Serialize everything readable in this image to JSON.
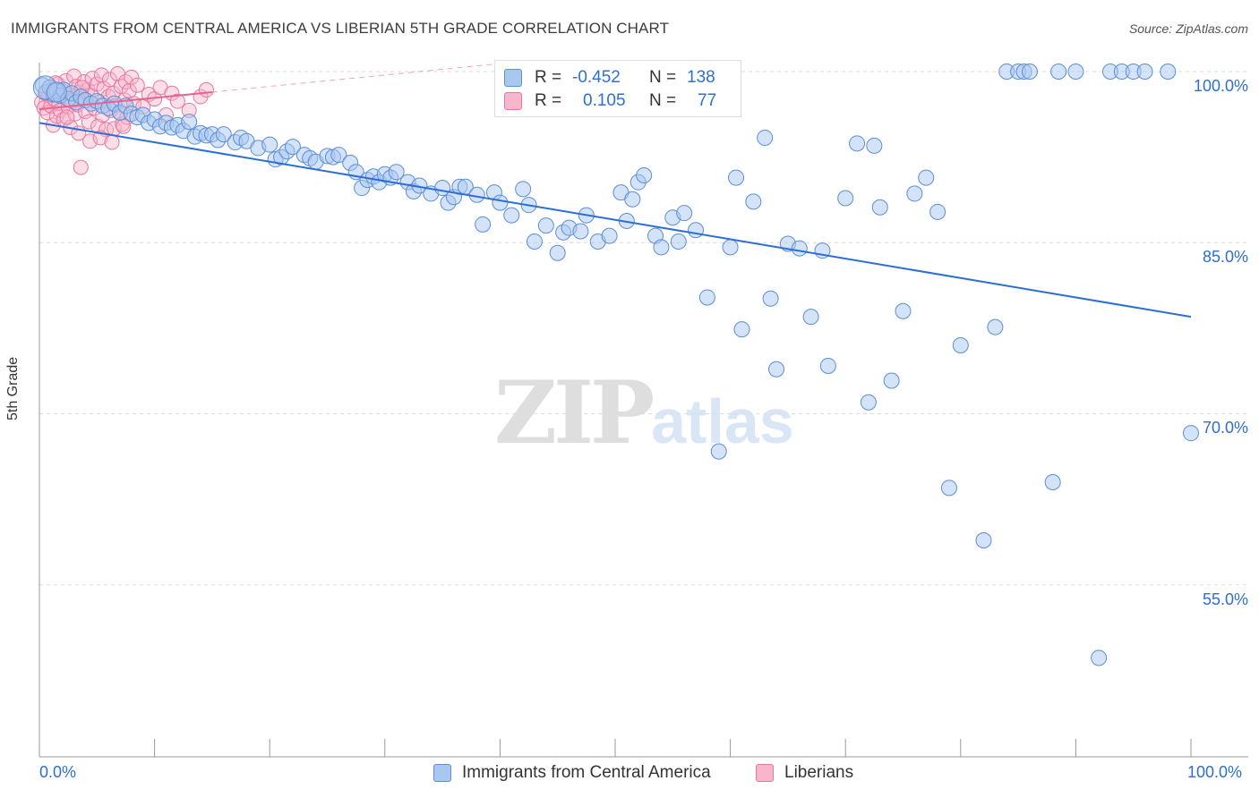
{
  "header": {
    "title": "IMMIGRANTS FROM CENTRAL AMERICA VS LIBERIAN 5TH GRADE CORRELATION CHART",
    "source": "Source: ZipAtlas.com"
  },
  "stats": {
    "row1": {
      "r_label": "R =",
      "r_value": "-0.452",
      "n_label": "N =",
      "n_value": "138"
    },
    "row2": {
      "r_label": "R =",
      "r_value": "0.105",
      "n_label": "N =",
      "n_value": "77"
    }
  },
  "watermark": {
    "zip": "ZIP",
    "atlas": "atlas"
  },
  "legend": {
    "series1": "Immigrants from Central America",
    "series2": "Liberians"
  },
  "axes": {
    "x_left": "0.0%",
    "x_right": "100.0%",
    "y_ticks": [
      "100.0%",
      "85.0%",
      "70.0%",
      "55.0%"
    ]
  },
  "colors": {
    "blue_fill": "#a9c8ef",
    "blue_stroke": "#5b8fd6",
    "blue_line": "#2b6fd4",
    "pink_fill": "#f7b6cb",
    "pink_stroke": "#e8769c",
    "pink_line": "#e8638f",
    "tick_text": "#2e6fd1"
  },
  "chart_data": {
    "type": "scatter",
    "title": "IMMIGRANTS FROM CENTRAL AMERICA VS LIBERIAN 5TH GRADE CORRELATION CHART",
    "xlabel": "",
    "ylabel": "5th Grade",
    "xlim": [
      0,
      100
    ],
    "ylim": [
      40,
      102.5
    ],
    "grid": true,
    "legend_position": "bottom-center",
    "series": [
      {
        "name": "Immigrants from Central America",
        "color": "#a9c8ef",
        "trend": {
          "x": [
            0,
            100
          ],
          "y": [
            95.5,
            78.5
          ]
        },
        "points": [
          [
            0.3,
            98.8
          ],
          [
            0.6,
            98.2
          ],
          [
            0.9,
            98.6
          ],
          [
            1.2,
            98.0
          ],
          [
            1.5,
            98.3
          ],
          [
            1.8,
            97.9
          ],
          [
            2.1,
            98.4
          ],
          [
            2.5,
            97.6
          ],
          [
            2.8,
            98.1
          ],
          [
            3.2,
            97.3
          ],
          [
            3.6,
            97.8
          ],
          [
            4.0,
            97.5
          ],
          [
            4.5,
            97.2
          ],
          [
            5.0,
            97.4
          ],
          [
            5.5,
            97.0
          ],
          [
            6.0,
            96.8
          ],
          [
            6.5,
            97.2
          ],
          [
            7.0,
            96.4
          ],
          [
            7.5,
            97.0
          ],
          [
            8.0,
            96.3
          ],
          [
            8.5,
            96.0
          ],
          [
            9.0,
            96.2
          ],
          [
            9.5,
            95.5
          ],
          [
            10.0,
            95.8
          ],
          [
            10.5,
            95.2
          ],
          [
            11.0,
            95.5
          ],
          [
            11.5,
            95.1
          ],
          [
            12.0,
            95.3
          ],
          [
            12.5,
            94.8
          ],
          [
            13.0,
            95.6
          ],
          [
            13.5,
            94.3
          ],
          [
            14.0,
            94.6
          ],
          [
            14.5,
            94.4
          ],
          [
            15.0,
            94.5
          ],
          [
            15.5,
            94.0
          ],
          [
            16.0,
            94.5
          ],
          [
            17.0,
            93.8
          ],
          [
            17.5,
            94.2
          ],
          [
            18.0,
            93.9
          ],
          [
            19.0,
            93.3
          ],
          [
            20.0,
            93.6
          ],
          [
            20.5,
            92.3
          ],
          [
            21.0,
            92.5
          ],
          [
            21.5,
            93.0
          ],
          [
            22.0,
            93.4
          ],
          [
            23.0,
            92.7
          ],
          [
            23.5,
            92.4
          ],
          [
            24.0,
            92.1
          ],
          [
            25.0,
            92.6
          ],
          [
            25.5,
            92.5
          ],
          [
            26.0,
            92.7
          ],
          [
            27.0,
            92.0
          ],
          [
            27.5,
            91.2
          ],
          [
            28.0,
            89.8
          ],
          [
            28.5,
            90.5
          ],
          [
            29.0,
            90.8
          ],
          [
            29.5,
            90.3
          ],
          [
            30.0,
            91.0
          ],
          [
            30.5,
            90.7
          ],
          [
            31.0,
            91.2
          ],
          [
            32.0,
            90.3
          ],
          [
            32.5,
            89.5
          ],
          [
            33.0,
            90.0
          ],
          [
            34.0,
            89.3
          ],
          [
            35.0,
            89.8
          ],
          [
            35.5,
            88.5
          ],
          [
            36.0,
            89.0
          ],
          [
            36.5,
            89.9
          ],
          [
            37.0,
            89.9
          ],
          [
            38.0,
            89.2
          ],
          [
            38.5,
            86.6
          ],
          [
            39.5,
            89.4
          ],
          [
            40.0,
            88.5
          ],
          [
            41.0,
            87.4
          ],
          [
            42.0,
            89.7
          ],
          [
            42.5,
            88.3
          ],
          [
            43.0,
            85.1
          ],
          [
            44.0,
            86.5
          ],
          [
            45.0,
            84.1
          ],
          [
            45.5,
            85.9
          ],
          [
            46.0,
            86.3
          ],
          [
            47.0,
            86.0
          ],
          [
            47.5,
            87.4
          ],
          [
            48.5,
            85.1
          ],
          [
            49.5,
            85.6
          ],
          [
            50.5,
            89.4
          ],
          [
            51.0,
            86.9
          ],
          [
            51.5,
            88.8
          ],
          [
            52.0,
            90.3
          ],
          [
            52.5,
            90.9
          ],
          [
            53.5,
            85.6
          ],
          [
            54.0,
            84.6
          ],
          [
            55.0,
            87.2
          ],
          [
            55.5,
            85.1
          ],
          [
            56.0,
            87.6
          ],
          [
            57.0,
            86.1
          ],
          [
            58.0,
            80.2
          ],
          [
            59.0,
            66.7
          ],
          [
            60.0,
            84.6
          ],
          [
            60.5,
            90.7
          ],
          [
            61.0,
            77.4
          ],
          [
            62.0,
            88.6
          ],
          [
            63.0,
            94.2
          ],
          [
            63.5,
            80.1
          ],
          [
            64.0,
            73.9
          ],
          [
            65.0,
            84.9
          ],
          [
            66.0,
            84.5
          ],
          [
            67.0,
            78.5
          ],
          [
            68.0,
            84.3
          ],
          [
            68.5,
            74.2
          ],
          [
            70.0,
            88.9
          ],
          [
            71.0,
            93.7
          ],
          [
            72.0,
            71.0
          ],
          [
            72.5,
            93.5
          ],
          [
            73.0,
            88.1
          ],
          [
            74.0,
            72.9
          ],
          [
            75.0,
            79.0
          ],
          [
            76.0,
            89.3
          ],
          [
            77.0,
            90.7
          ],
          [
            78.0,
            87.7
          ],
          [
            79.0,
            63.5
          ],
          [
            80.0,
            76.0
          ],
          [
            82.0,
            58.9
          ],
          [
            83.0,
            77.6
          ],
          [
            84.0,
            100.0
          ],
          [
            85.0,
            100.0
          ],
          [
            85.5,
            100.0
          ],
          [
            86.0,
            100.0
          ],
          [
            88.0,
            64.0
          ],
          [
            88.5,
            100.0
          ],
          [
            90.0,
            100.0
          ],
          [
            92.0,
            48.6
          ],
          [
            93.0,
            100.0
          ],
          [
            94.0,
            100.0
          ],
          [
            95.0,
            100.0
          ],
          [
            96.0,
            100.0
          ],
          [
            98.0,
            100.0
          ],
          [
            100.0,
            68.3
          ]
        ]
      },
      {
        "name": "Liberians",
        "color": "#f7b6cb",
        "trend": {
          "x": [
            0,
            15
          ],
          "y": [
            96.7,
            98.2
          ]
        },
        "points": [
          [
            0.2,
            97.3
          ],
          [
            0.4,
            96.8
          ],
          [
            0.5,
            98.1
          ],
          [
            0.7,
            96.4
          ],
          [
            0.8,
            97.9
          ],
          [
            1.0,
            97.0
          ],
          [
            1.1,
            98.5
          ],
          [
            1.2,
            95.3
          ],
          [
            1.3,
            97.6
          ],
          [
            1.5,
            96.1
          ],
          [
            1.6,
            98.9
          ],
          [
            1.7,
            97.2
          ],
          [
            1.8,
            96.6
          ],
          [
            2.0,
            98.3
          ],
          [
            2.1,
            95.8
          ],
          [
            2.2,
            97.8
          ],
          [
            2.3,
            99.2
          ],
          [
            2.5,
            96.9
          ],
          [
            2.6,
            98.0
          ],
          [
            2.7,
            95.1
          ],
          [
            2.8,
            97.4
          ],
          [
            3.0,
            99.6
          ],
          [
            3.1,
            96.3
          ],
          [
            3.2,
            98.7
          ],
          [
            3.3,
            97.1
          ],
          [
            3.4,
            94.6
          ],
          [
            3.5,
            98.2
          ],
          [
            3.6,
            91.6
          ],
          [
            3.8,
            97.7
          ],
          [
            3.9,
            99.1
          ],
          [
            4.0,
            96.5
          ],
          [
            4.2,
            98.4
          ],
          [
            4.3,
            95.6
          ],
          [
            4.5,
            97.9
          ],
          [
            4.6,
            99.4
          ],
          [
            4.8,
            96.8
          ],
          [
            5.0,
            98.9
          ],
          [
            5.1,
            95.2
          ],
          [
            5.2,
            97.3
          ],
          [
            5.4,
            99.7
          ],
          [
            5.5,
            96.2
          ],
          [
            5.6,
            98.5
          ],
          [
            5.8,
            94.9
          ],
          [
            6.0,
            97.8
          ],
          [
            6.1,
            99.3
          ],
          [
            6.2,
            96.6
          ],
          [
            6.4,
            98.1
          ],
          [
            6.5,
            95.0
          ],
          [
            6.6,
            97.0
          ],
          [
            6.8,
            99.8
          ],
          [
            7.0,
            96.4
          ],
          [
            7.1,
            98.7
          ],
          [
            7.2,
            95.4
          ],
          [
            7.4,
            97.5
          ],
          [
            7.5,
            99.1
          ],
          [
            7.6,
            96.0
          ],
          [
            7.8,
            98.3
          ],
          [
            8.0,
            99.5
          ],
          [
            8.2,
            97.2
          ],
          [
            8.5,
            98.8
          ],
          [
            9.0,
            96.9
          ],
          [
            9.5,
            98.0
          ],
          [
            10.0,
            97.6
          ],
          [
            10.5,
            98.6
          ],
          [
            11.0,
            96.2
          ],
          [
            11.5,
            98.1
          ],
          [
            12.0,
            97.4
          ],
          [
            13.0,
            96.6
          ],
          [
            14.0,
            97.8
          ],
          [
            14.5,
            98.4
          ],
          [
            1.4,
            99.0
          ],
          [
            2.4,
            96.0
          ],
          [
            3.7,
            98.6
          ],
          [
            4.4,
            93.9
          ],
          [
            5.3,
            94.2
          ],
          [
            6.3,
            93.8
          ],
          [
            7.3,
            95.2
          ]
        ]
      }
    ]
  }
}
